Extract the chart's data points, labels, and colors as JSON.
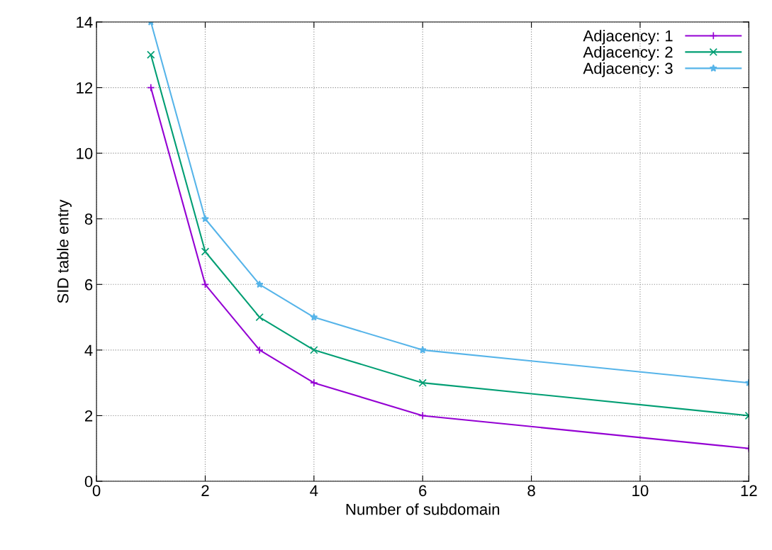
{
  "chart_data": {
    "type": "line",
    "xlabel": "Number of subdomain",
    "ylabel": "SID table entry",
    "x": [
      1,
      2,
      3,
      4,
      6,
      12
    ],
    "series": [
      {
        "name": "Adjacency: 1",
        "color": "#9400d3",
        "marker": "plus",
        "values": [
          12,
          6,
          4,
          3,
          2,
          1
        ]
      },
      {
        "name": "Adjacency: 2",
        "color": "#009e73",
        "marker": "cross",
        "values": [
          13,
          7,
          5,
          4,
          3,
          2
        ]
      },
      {
        "name": "Adjacency: 3",
        "color": "#56b4e9",
        "marker": "star",
        "values": [
          14,
          8,
          6,
          5,
          4,
          3
        ]
      }
    ],
    "xlim": [
      0,
      12
    ],
    "xticks": [
      0,
      2,
      4,
      6,
      8,
      10,
      12
    ],
    "ylim": [
      0,
      14
    ],
    "yticks": [
      0,
      2,
      4,
      6,
      8,
      10,
      12,
      14
    ],
    "grid": true,
    "legend": "top right",
    "line_style": "solid"
  }
}
